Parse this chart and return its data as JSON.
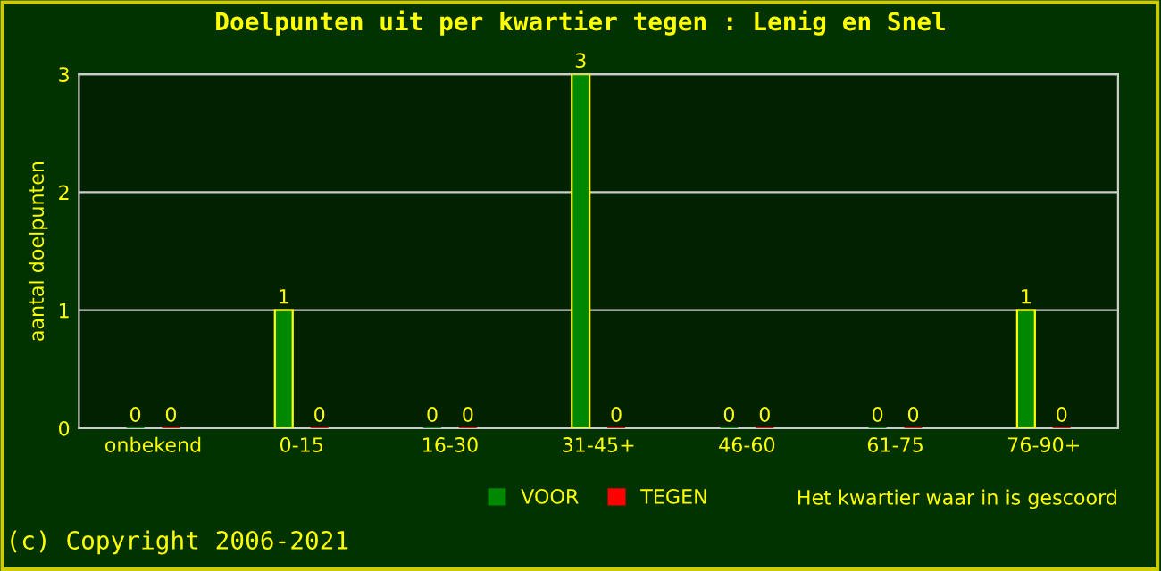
{
  "chart_data": {
    "type": "bar",
    "title": "Doelpunten uit per kwartier tegen : Lenig en Snel",
    "categories": [
      "onbekend",
      "0-15",
      "16-30",
      "31-45+",
      "46-60",
      "61-75",
      "76-90+"
    ],
    "series": [
      {
        "name": "VOOR",
        "color": "#008800",
        "values": [
          0,
          1,
          0,
          3,
          0,
          0,
          1
        ]
      },
      {
        "name": "TEGEN",
        "color": "#ff0000",
        "values": [
          0,
          0,
          0,
          0,
          0,
          0,
          0
        ]
      }
    ],
    "xlabel": "Het kwartier waar in is gescoord",
    "ylabel": "aantal doelpunten",
    "ylim": [
      0,
      3
    ],
    "yticks": [
      0,
      1,
      2,
      3
    ],
    "grid": "y",
    "legend": "bottom",
    "data_labels": true,
    "annotations": [
      "(c) Copyright 2006-2021"
    ]
  }
}
